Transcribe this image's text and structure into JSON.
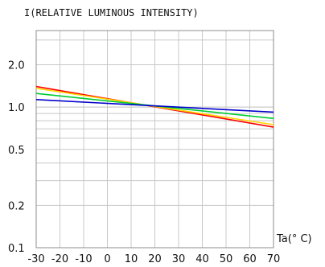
{
  "chart_data": {
    "type": "line",
    "title": "I(RELATIVE LUMINOUS INTENSITY)",
    "xlabel": "Ta(° C)",
    "ylabel": "",
    "x": [
      -30,
      70
    ],
    "xlim": [
      -30,
      70
    ],
    "ylim": [
      0.1,
      3.5
    ],
    "y_scale": "log",
    "x_ticks": [
      -30,
      -20,
      -10,
      0,
      10,
      20,
      30,
      40,
      50,
      60,
      70
    ],
    "x_tick_labels": [
      "-30",
      "-20",
      "-10",
      "0",
      "10",
      "20",
      "30",
      "40",
      "50",
      "60",
      "70"
    ],
    "y_ticks": [
      0.1,
      0.2,
      0.5,
      1.0,
      2.0
    ],
    "y_tick_labels": [
      "0.1",
      "0.2",
      "0.5",
      "1.0",
      "2.0"
    ],
    "grid": true,
    "series": [
      {
        "color": "#ff0000",
        "values": [
          1.4,
          0.72
        ]
      },
      {
        "color": "#ffd400",
        "values": [
          1.36,
          0.75
        ]
      },
      {
        "color": "#00cc33",
        "values": [
          1.25,
          0.83
        ]
      },
      {
        "color": "#0000cc",
        "values": [
          1.13,
          0.92
        ]
      }
    ]
  }
}
